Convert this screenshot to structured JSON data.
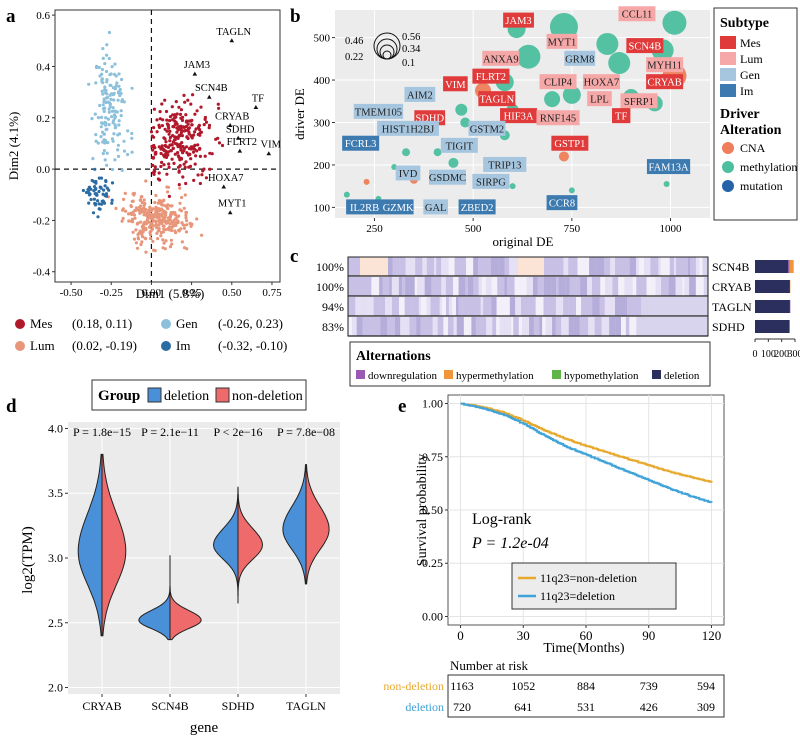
{
  "panels": {
    "a": "a",
    "b": "b",
    "c": "c",
    "d": "d",
    "e": "e"
  },
  "colors": {
    "mes": "#b2182b",
    "lum": "#e8967a",
    "gen": "#8cc0db",
    "im": "#2b6ca3",
    "subtype_mes": "#e03a3a",
    "subtype_lum": "#f6a8a8",
    "subtype_gen": "#a6c6df",
    "subtype_im": "#3d7ab0",
    "cna": "#ef7e5a",
    "methylation": "#4dbf9f",
    "mutation": "#2563a8",
    "downregulation": "#9b59b6",
    "hypermethylation": "#f0953a",
    "hypomethylation": "#5fb548",
    "deletion": "#2a2f5e",
    "deletion_violin": "#4a90d9",
    "nondeletion_violin": "#ef6b6b",
    "km_nondeletion": "#e6a92e",
    "km_deletion": "#3fa2d9"
  },
  "chart_data": [
    {
      "id": "a",
      "type": "scatter",
      "xlabel": "Dim1 (5.8%)",
      "ylabel": "Dim2 (4.1%)",
      "xlim": [
        -0.6,
        0.8
      ],
      "ylim": [
        -0.44,
        0.62
      ],
      "xticks": [
        -0.5,
        -0.25,
        0.0,
        0.25,
        0.5,
        0.75
      ],
      "xtick_labels": [
        "-0.50",
        "-0.25",
        "0.00",
        "0.25",
        "0.50",
        "0.75"
      ],
      "yticks": [
        -0.4,
        -0.2,
        0.0,
        0.2,
        0.4,
        0.6
      ],
      "ytick_labels": [
        "-0.4",
        "-0.2",
        "0.0",
        "0.2",
        "0.4",
        "0.6"
      ],
      "groups": [
        {
          "name": "Mes",
          "centroid": [
            0.18,
            0.11
          ],
          "label": "(0.18, 0.11)",
          "sx": 0.17,
          "sy": 0.12,
          "n": 260
        },
        {
          "name": "Lum",
          "centroid": [
            0.02,
            -0.19
          ],
          "label": "(0.02, -0.19)",
          "sx": 0.17,
          "sy": 0.085,
          "n": 300
        },
        {
          "name": "Gen",
          "centroid": [
            -0.26,
            0.23
          ],
          "label": "(-0.26, 0.23)",
          "sx": 0.075,
          "sy": 0.17,
          "n": 150
        },
        {
          "name": "Im",
          "centroid": [
            -0.32,
            -0.1
          ],
          "label": "(-0.32, -0.10)",
          "sx": 0.07,
          "sy": 0.06,
          "n": 60
        }
      ],
      "genes": [
        {
          "name": "TAGLN",
          "x": 0.5,
          "y": 0.5
        },
        {
          "name": "JAM3",
          "x": 0.27,
          "y": 0.37
        },
        {
          "name": "SCN4B",
          "x": 0.36,
          "y": 0.28
        },
        {
          "name": "TF",
          "x": 0.65,
          "y": 0.24
        },
        {
          "name": "CRYAB",
          "x": 0.49,
          "y": 0.17
        },
        {
          "name": "SDHD",
          "x": 0.54,
          "y": 0.12
        },
        {
          "name": "FLRT2",
          "x": 0.55,
          "y": 0.07
        },
        {
          "name": "VIM",
          "x": 0.73,
          "y": 0.06
        },
        {
          "name": "HOXA7",
          "x": 0.45,
          "y": -0.07
        },
        {
          "name": "MYT1",
          "x": 0.49,
          "y": -0.17
        }
      ]
    },
    {
      "id": "b",
      "type": "scatter",
      "xlabel": "original DE",
      "ylabel": "driver DE",
      "xlim": [
        150,
        1100
      ],
      "ylim": [
        75,
        565
      ],
      "xticks": [
        250,
        500,
        750,
        1000
      ],
      "yticks": [
        100,
        200,
        300,
        400,
        500
      ],
      "size_legend": [
        "0.46",
        "0.56",
        "0.22",
        "0.34",
        "0.1"
      ],
      "legend_subtype_title": "Subtype",
      "legend_subtype": [
        "Mes",
        "Lum",
        "Gen",
        "Im"
      ],
      "legend_alt_title": "Driver Alteration",
      "legend_alt_title_lines": [
        "Driver",
        "Alteration"
      ],
      "legend_alt": [
        "CNA",
        "methylation",
        "mutation"
      ],
      "points": [
        {
          "x": 730,
          "y": 525,
          "r": 14,
          "a": "methylation"
        },
        {
          "x": 840,
          "y": 485,
          "r": 11,
          "a": "methylation"
        },
        {
          "x": 640,
          "y": 455,
          "r": 12,
          "a": "methylation"
        },
        {
          "x": 870,
          "y": 440,
          "r": 11,
          "a": "methylation"
        },
        {
          "x": 1010,
          "y": 535,
          "r": 12,
          "a": "methylation"
        },
        {
          "x": 980,
          "y": 470,
          "r": 11,
          "a": "methylation"
        },
        {
          "x": 1010,
          "y": 410,
          "r": 12,
          "a": "CNA"
        },
        {
          "x": 900,
          "y": 360,
          "r": 8,
          "a": "methylation"
        },
        {
          "x": 960,
          "y": 345,
          "r": 8,
          "a": "methylation"
        },
        {
          "x": 750,
          "y": 365,
          "r": 9,
          "a": "methylation"
        },
        {
          "x": 700,
          "y": 355,
          "r": 8,
          "a": "methylation"
        },
        {
          "x": 580,
          "y": 395,
          "r": 9,
          "a": "methylation"
        },
        {
          "x": 525,
          "y": 375,
          "r": 8,
          "a": "CNA"
        },
        {
          "x": 610,
          "y": 520,
          "r": 9,
          "a": "methylation"
        },
        {
          "x": 600,
          "y": 330,
          "r": 6,
          "a": "methylation"
        },
        {
          "x": 470,
          "y": 330,
          "r": 6,
          "a": "methylation"
        },
        {
          "x": 480,
          "y": 300,
          "r": 5,
          "a": "methylation"
        },
        {
          "x": 580,
          "y": 270,
          "r": 5,
          "a": "methylation"
        },
        {
          "x": 730,
          "y": 220,
          "r": 5,
          "a": "CNA"
        },
        {
          "x": 740,
          "y": 255,
          "r": 5,
          "a": "methylation"
        },
        {
          "x": 270,
          "y": 290,
          "r": 4,
          "a": "methylation"
        },
        {
          "x": 330,
          "y": 230,
          "r": 4,
          "a": "methylation"
        },
        {
          "x": 300,
          "y": 195,
          "r": 3,
          "a": "methylation"
        },
        {
          "x": 230,
          "y": 160,
          "r": 3,
          "a": "CNA"
        },
        {
          "x": 180,
          "y": 130,
          "r": 3,
          "a": "methylation"
        },
        {
          "x": 350,
          "y": 165,
          "r": 4,
          "a": "CNA"
        },
        {
          "x": 450,
          "y": 205,
          "r": 5,
          "a": "methylation"
        },
        {
          "x": 600,
          "y": 150,
          "r": 3,
          "a": "methylation"
        },
        {
          "x": 750,
          "y": 140,
          "r": 3,
          "a": "methylation"
        },
        {
          "x": 990,
          "y": 155,
          "r": 3,
          "a": "methylation"
        },
        {
          "x": 520,
          "y": 100,
          "r": 3,
          "a": "methylation"
        },
        {
          "x": 260,
          "y": 120,
          "r": 3,
          "a": "methylation"
        },
        {
          "x": 410,
          "y": 230,
          "r": 4,
          "a": "methylation"
        }
      ],
      "labels": [
        {
          "t": "JAM3",
          "x": 615,
          "y": 540,
          "s": "Mes"
        },
        {
          "t": "CCL11",
          "x": 915,
          "y": 555,
          "s": "Lum"
        },
        {
          "t": "MYT1",
          "x": 725,
          "y": 490,
          "s": "Lum"
        },
        {
          "t": "SCN4B",
          "x": 935,
          "y": 480,
          "s": "Mes"
        },
        {
          "t": "ANXA9",
          "x": 570,
          "y": 450,
          "s": "Lum"
        },
        {
          "t": "GRM8",
          "x": 770,
          "y": 450,
          "s": "Gen"
        },
        {
          "t": "MYH11",
          "x": 985,
          "y": 435,
          "s": "Lum"
        },
        {
          "t": "FLRT2",
          "x": 545,
          "y": 408,
          "s": "Mes"
        },
        {
          "t": "HOXA7",
          "x": 825,
          "y": 395,
          "s": "Lum"
        },
        {
          "t": "CLIP4",
          "x": 715,
          "y": 395,
          "s": "Lum"
        },
        {
          "t": "VIM",
          "x": 455,
          "y": 390,
          "s": "Mes"
        },
        {
          "t": "CRYAB",
          "x": 985,
          "y": 395,
          "s": "Mes"
        },
        {
          "t": "AIM2",
          "x": 365,
          "y": 365,
          "s": "Gen"
        },
        {
          "t": "TAGLN",
          "x": 560,
          "y": 355,
          "s": "Mes"
        },
        {
          "t": "LPL",
          "x": 820,
          "y": 355,
          "s": "Lum"
        },
        {
          "t": "SFRP1",
          "x": 920,
          "y": 350,
          "s": "Lum"
        },
        {
          "t": "HIF3A",
          "x": 615,
          "y": 315,
          "s": "Mes"
        },
        {
          "t": "RNF145",
          "x": 715,
          "y": 310,
          "s": "Lum"
        },
        {
          "t": "TF",
          "x": 875,
          "y": 315,
          "s": "Mes"
        },
        {
          "t": "TMEM105",
          "x": 260,
          "y": 325,
          "s": "Gen"
        },
        {
          "t": "SDHD",
          "x": 390,
          "y": 310,
          "s": "Mes"
        },
        {
          "t": "GSTM2",
          "x": 535,
          "y": 285,
          "s": "Gen"
        },
        {
          "t": "HIST1H2BJ",
          "x": 335,
          "y": 285,
          "s": "Gen"
        },
        {
          "t": "GSTP1",
          "x": 745,
          "y": 250,
          "s": "Mes"
        },
        {
          "t": "FCRL3",
          "x": 215,
          "y": 250,
          "s": "Im"
        },
        {
          "t": "TIGIT",
          "x": 465,
          "y": 245,
          "s": "Gen"
        },
        {
          "t": "TRIP13",
          "x": 580,
          "y": 200,
          "s": "Gen"
        },
        {
          "t": "IVD",
          "x": 335,
          "y": 180,
          "s": "Gen"
        },
        {
          "t": "GSDMC",
          "x": 435,
          "y": 170,
          "s": "Gen"
        },
        {
          "t": "SIRPG",
          "x": 545,
          "y": 160,
          "s": "Gen"
        },
        {
          "t": "FAM13A",
          "x": 995,
          "y": 195,
          "s": "Im"
        },
        {
          "t": "CCR8",
          "x": 725,
          "y": 110,
          "s": "Im"
        },
        {
          "t": "IL2RB",
          "x": 225,
          "y": 100,
          "s": "Im"
        },
        {
          "t": "GZMK",
          "x": 310,
          "y": 100,
          "s": "Im"
        },
        {
          "t": "GAL",
          "x": 405,
          "y": 100,
          "s": "Gen"
        },
        {
          "t": "ZBED2",
          "x": 510,
          "y": 100,
          "s": "Im"
        }
      ]
    },
    {
      "id": "c",
      "type": "heatmap",
      "rows": [
        {
          "gene": "SCN4B",
          "pct": "100%",
          "bar": [
            250,
            10,
            30,
            0
          ]
        },
        {
          "gene": "CRYAB",
          "pct": "100%",
          "bar": [
            262,
            0,
            3,
            0
          ]
        },
        {
          "gene": "TAGLN",
          "pct": "94%",
          "bar": [
            262,
            3,
            0,
            0
          ]
        },
        {
          "gene": "SDHD",
          "pct": "83%",
          "bar": [
            258,
            0,
            0,
            4
          ]
        }
      ],
      "bar_axis": [
        0,
        100,
        200,
        300
      ],
      "bar_series": [
        "deletion",
        "downregulation",
        "hypermethylation",
        "hypomethylation"
      ],
      "legend_title": "Alternations",
      "legend": [
        "downregulation",
        "hypermethylation",
        "hypomethylation",
        "deletion"
      ]
    },
    {
      "id": "d",
      "type": "violin",
      "legend_title": "Group",
      "legend": [
        "deletion",
        "non-deletion"
      ],
      "xlabel": "gene",
      "ylabel": "log2(TPM)",
      "ylim": [
        1.95,
        4.05
      ],
      "yticks": [
        2.0,
        2.5,
        3.0,
        3.5,
        4.0
      ],
      "ytick_labels": [
        "2.0",
        "2.5",
        "3.0",
        "3.5",
        "4.0"
      ],
      "genes": [
        {
          "name": "CRYAB",
          "p": "P = 1.8e−15",
          "center": 3.05,
          "min": 2.4,
          "max": 3.8,
          "width": 0.35,
          "spread": 0.28
        },
        {
          "name": "SCN4B",
          "p": "P = 2.1e−11",
          "center": 2.52,
          "min": 2.37,
          "max": 3.02,
          "width": 0.46,
          "spread": 0.07
        },
        {
          "name": "SDHD",
          "p": "P < 2e−16",
          "center": 3.1,
          "min": 2.65,
          "max": 3.55,
          "width": 0.36,
          "spread": 0.12
        },
        {
          "name": "TAGLN",
          "p": "P = 7.8e−08",
          "center": 3.22,
          "min": 2.8,
          "max": 3.72,
          "width": 0.34,
          "spread": 0.17
        }
      ]
    },
    {
      "id": "e",
      "type": "line",
      "xlabel": "Time(Months)",
      "ylabel": "Survival probability",
      "xlim": [
        -6,
        126
      ],
      "ylim": [
        -0.04,
        1.04
      ],
      "xticks": [
        0,
        30,
        60,
        90,
        120
      ],
      "yticks": [
        0.0,
        0.25,
        0.5,
        0.75,
        1.0
      ],
      "ytick_labels": [
        "0.00",
        "0.25",
        "0.50",
        "0.75",
        "1.00"
      ],
      "logrank_title": "Log-rank",
      "logrank_p": "P = 1.2e-04",
      "series": [
        {
          "name": "11q23=non-deletion",
          "x": [
            0,
            10,
            20,
            30,
            40,
            50,
            60,
            70,
            80,
            90,
            100,
            110,
            120
          ],
          "y": [
            1.0,
            0.985,
            0.96,
            0.92,
            0.875,
            0.835,
            0.8,
            0.77,
            0.74,
            0.71,
            0.68,
            0.655,
            0.63
          ]
        },
        {
          "name": "11q23=deletion",
          "x": [
            0,
            10,
            20,
            30,
            40,
            50,
            60,
            70,
            80,
            90,
            100,
            110,
            120
          ],
          "y": [
            1.0,
            0.98,
            0.95,
            0.905,
            0.85,
            0.8,
            0.76,
            0.72,
            0.68,
            0.64,
            0.6,
            0.565,
            0.535
          ]
        }
      ],
      "risk_title": "Number at risk",
      "risk": [
        {
          "name": "non-deletion",
          "values": [
            "1163",
            "1052",
            "884",
            "739",
            "594"
          ]
        },
        {
          "name": "deletion",
          "values": [
            "720",
            "641",
            "531",
            "426",
            "309"
          ]
        }
      ]
    }
  ]
}
